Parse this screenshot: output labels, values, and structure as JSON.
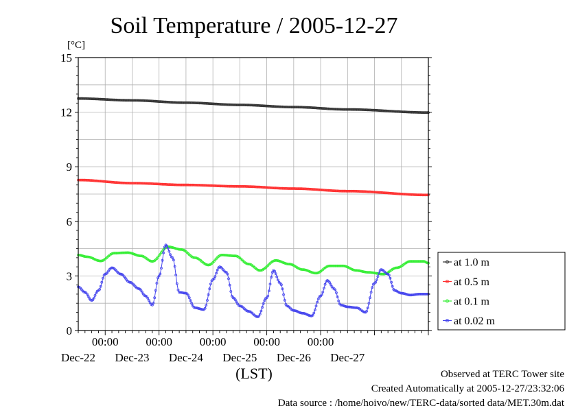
{
  "chart_data": {
    "type": "line",
    "title": "Soil Temperature / 2005-12-27",
    "ylabel": "[°C]",
    "xlabel": "(LST)",
    "ylim": [
      0,
      15
    ],
    "yticks": [
      "0",
      "3",
      "6",
      "9",
      "12",
      "15"
    ],
    "x_time_labels": [
      "00:00",
      "00:00",
      "00:00",
      "00:00",
      "00:00"
    ],
    "x_date_labels": [
      "Dec-22",
      "Dec-23",
      "Dec-24",
      "Dec-25",
      "Dec-26",
      "Dec-27"
    ],
    "xlim": [
      "2005-12-21T12:00",
      "2005-12-28T00:00"
    ],
    "grid": true,
    "legend_position": "right",
    "series": [
      {
        "name": "at 1.0 m",
        "color": "#333333",
        "x": [
          "2005-12-21T12:00",
          "2005-12-22T12:00",
          "2005-12-23T12:00",
          "2005-12-24T12:00",
          "2005-12-25T12:00",
          "2005-12-26T12:00",
          "2005-12-28T00:00"
        ],
        "values": [
          12.75,
          12.65,
          12.52,
          12.4,
          12.28,
          12.15,
          11.98
        ]
      },
      {
        "name": "at 0.5 m",
        "color": "#ff3030",
        "x": [
          "2005-12-21T12:00",
          "2005-12-22T12:00",
          "2005-12-23T12:00",
          "2005-12-24T12:00",
          "2005-12-25T12:00",
          "2005-12-26T12:00",
          "2005-12-28T00:00"
        ],
        "values": [
          8.27,
          8.1,
          8.0,
          7.92,
          7.8,
          7.66,
          7.45
        ]
      },
      {
        "name": "at 0.1 m",
        "color": "#33ee33",
        "x": [
          "2005-12-21T12:00",
          "2005-12-21T16:00",
          "2005-12-21T22:00",
          "2005-12-22T04:00",
          "2005-12-22T10:00",
          "2005-12-22T16:00",
          "2005-12-22T21:00",
          "2005-12-23T04:00",
          "2005-12-23T10:00",
          "2005-12-23T16:00",
          "2005-12-23T22:00",
          "2005-12-24T04:00",
          "2005-12-24T10:00",
          "2005-12-24T16:00",
          "2005-12-24T21:00",
          "2005-12-25T04:00",
          "2005-12-25T10:00",
          "2005-12-25T16:00",
          "2005-12-25T22:00",
          "2005-12-26T04:00",
          "2005-12-26T10:00",
          "2005-12-26T16:00",
          "2005-12-26T21:00",
          "2005-12-27T04:00",
          "2005-12-27T10:00",
          "2005-12-27T16:00",
          "2005-12-27T22:00",
          "2005-12-28T00:00"
        ],
        "values": [
          4.15,
          4.05,
          3.82,
          4.25,
          4.28,
          4.1,
          3.8,
          4.6,
          4.45,
          4.0,
          3.6,
          4.15,
          4.1,
          3.65,
          3.3,
          3.85,
          3.65,
          3.35,
          3.15,
          3.55,
          3.55,
          3.3,
          3.2,
          3.1,
          3.45,
          3.8,
          3.8,
          3.7
        ]
      },
      {
        "name": "at 0.02 m",
        "color": "#4444ee",
        "x": [
          "2005-12-21T12:00",
          "2005-12-21T15:00",
          "2005-12-21T18:00",
          "2005-12-21T21:00",
          "2005-12-22T00:00",
          "2005-12-22T03:00",
          "2005-12-22T07:00",
          "2005-12-22T11:00",
          "2005-12-22T15:00",
          "2005-12-22T18:00",
          "2005-12-22T21:00",
          "2005-12-23T00:00",
          "2005-12-23T03:00",
          "2005-12-23T06:00",
          "2005-12-23T09:00",
          "2005-12-23T12:00",
          "2005-12-23T16:00",
          "2005-12-23T20:00",
          "2005-12-24T00:00",
          "2005-12-24T03:00",
          "2005-12-24T06:00",
          "2005-12-24T09:00",
          "2005-12-24T12:00",
          "2005-12-24T16:00",
          "2005-12-24T20:00",
          "2005-12-25T00:00",
          "2005-12-25T03:00",
          "2005-12-25T06:00",
          "2005-12-25T09:00",
          "2005-12-25T12:00",
          "2005-12-25T16:00",
          "2005-12-25T20:00",
          "2005-12-26T00:00",
          "2005-12-26T03:00",
          "2005-12-26T06:00",
          "2005-12-26T09:00",
          "2005-12-26T12:00",
          "2005-12-26T16:00",
          "2005-12-26T20:00",
          "2005-12-27T00:00",
          "2005-12-27T03:00",
          "2005-12-27T06:00",
          "2005-12-27T09:00",
          "2005-12-27T12:00",
          "2005-12-27T16:00",
          "2005-12-27T20:00",
          "2005-12-28T00:00"
        ],
        "values": [
          2.4,
          2.1,
          1.65,
          2.2,
          3.1,
          3.45,
          3.1,
          2.65,
          2.3,
          1.9,
          1.4,
          3.0,
          4.7,
          4.0,
          2.1,
          2.05,
          1.25,
          1.15,
          2.8,
          3.5,
          3.2,
          1.8,
          1.35,
          1.05,
          0.75,
          1.8,
          3.3,
          2.6,
          1.35,
          1.1,
          0.95,
          0.8,
          1.9,
          2.75,
          2.3,
          1.4,
          1.3,
          1.25,
          1.0,
          2.6,
          3.35,
          3.1,
          2.2,
          2.05,
          1.95,
          2.0,
          2.0
        ]
      }
    ]
  },
  "footer": {
    "line1": "Observed at TERC Tower site",
    "line2": "Created Automatically at 2005-12-27/23:32:06",
    "line3": "Data source : /home/hoivo/new/TERC-data/sorted  data/MET.30m.dat"
  }
}
